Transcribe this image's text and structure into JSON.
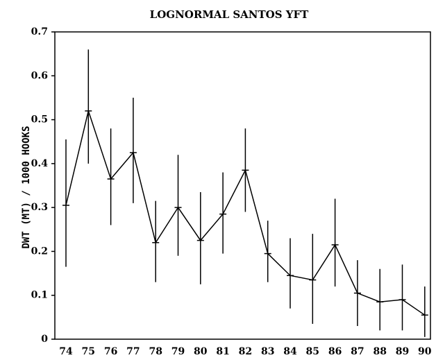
{
  "chart_data": {
    "type": "line",
    "title": "LOGNORMAL SANTOS  YFT",
    "ylabel": "DWT (MT) / 1000 HOOKS",
    "categories": [
      "74",
      "75",
      "76",
      "77",
      "78",
      "79",
      "80",
      "81",
      "82",
      "83",
      "84",
      "85",
      "86",
      "87",
      "88",
      "89",
      "90"
    ],
    "series": [
      {
        "name": null,
        "color": "#000000",
        "values": [
          0.305,
          0.52,
          0.365,
          0.425,
          0.22,
          0.3,
          0.225,
          0.285,
          0.385,
          0.195,
          0.145,
          0.135,
          0.215,
          0.105,
          0.085,
          0.09,
          0.055
        ],
        "low": [
          0.165,
          0.4,
          0.26,
          0.31,
          0.13,
          0.19,
          0.125,
          0.195,
          0.29,
          0.13,
          0.07,
          0.035,
          0.12,
          0.03,
          0.02,
          0.02,
          0.005
        ],
        "high": [
          0.455,
          0.66,
          0.48,
          0.55,
          0.315,
          0.42,
          0.335,
          0.38,
          0.48,
          0.27,
          0.23,
          0.24,
          0.32,
          0.18,
          0.16,
          0.17,
          0.12
        ]
      }
    ],
    "ylim": [
      0,
      0.7
    ],
    "yticks": [
      0,
      0.1,
      0.2,
      0.3,
      0.4,
      0.5,
      0.6,
      0.7
    ]
  }
}
